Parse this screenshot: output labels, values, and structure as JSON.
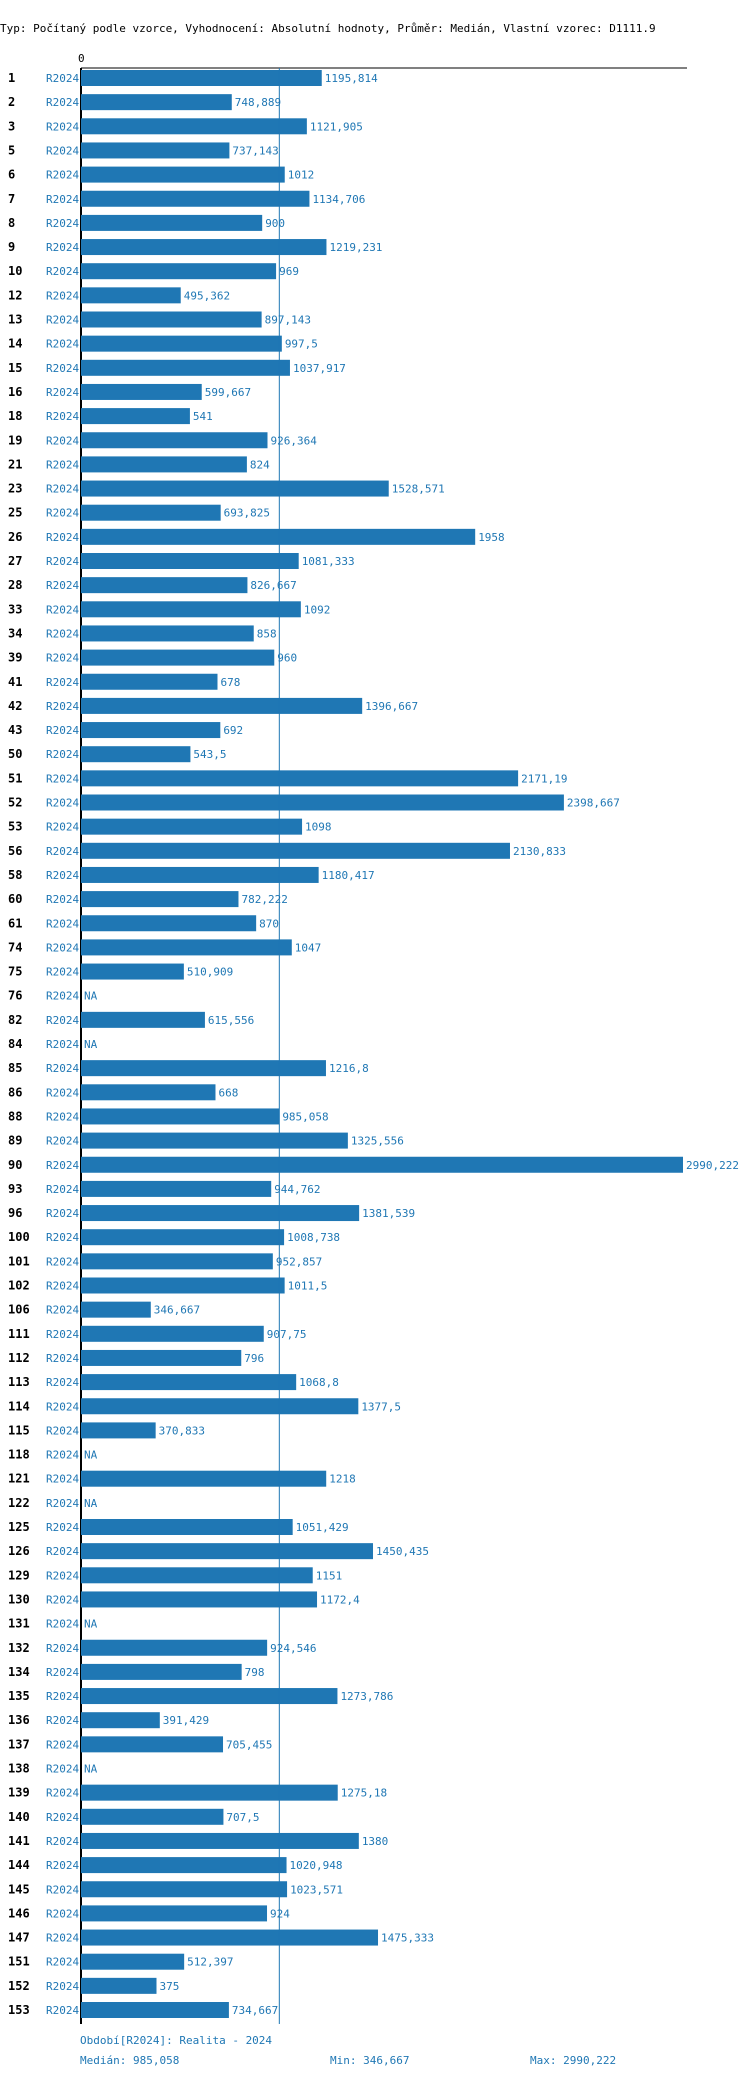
{
  "header": "Typ: Počítaný podle vzorce, Vyhodnocení: Absolutní hodnoty, Průměr: Medián, Vlastní vzorec: D1111.9",
  "footer": {
    "period": "Období[R2024]: Realita - 2024",
    "median": "Medián: 985,058",
    "min": "Min: 346,667",
    "max": "Max: 2990,222"
  },
  "colors": {
    "bar": "#1f77b4",
    "median_line": "#1f77b4",
    "axis": "#000000"
  },
  "chart_data": {
    "type": "bar",
    "orientation": "horizontal",
    "title": "Typ: Počítaný podle vzorce, Vyhodnocení: Absolutní hodnoty, Průměr: Medián, Vlastní vzorec: D1111.9",
    "period": "R2024",
    "axis_tick": "0",
    "xlim": [
      0,
      2990.222
    ],
    "median": 985.058,
    "rows": [
      {
        "id": "1",
        "value": 1195.814,
        "label": "1195,814"
      },
      {
        "id": "2",
        "value": 748.889,
        "label": "748,889"
      },
      {
        "id": "3",
        "value": 1121.905,
        "label": "1121,905"
      },
      {
        "id": "5",
        "value": 737.143,
        "label": "737,143"
      },
      {
        "id": "6",
        "value": 1012,
        "label": "1012"
      },
      {
        "id": "7",
        "value": 1134.706,
        "label": "1134,706"
      },
      {
        "id": "8",
        "value": 900,
        "label": "900"
      },
      {
        "id": "9",
        "value": 1219.231,
        "label": "1219,231"
      },
      {
        "id": "10",
        "value": 969,
        "label": "969"
      },
      {
        "id": "12",
        "value": 495.362,
        "label": "495,362"
      },
      {
        "id": "13",
        "value": 897.143,
        "label": "897,143"
      },
      {
        "id": "14",
        "value": 997.5,
        "label": "997,5"
      },
      {
        "id": "15",
        "value": 1037.917,
        "label": "1037,917"
      },
      {
        "id": "16",
        "value": 599.667,
        "label": "599,667"
      },
      {
        "id": "18",
        "value": 541,
        "label": "541"
      },
      {
        "id": "19",
        "value": 926.364,
        "label": "926,364"
      },
      {
        "id": "21",
        "value": 824,
        "label": "824"
      },
      {
        "id": "23",
        "value": 1528.571,
        "label": "1528,571"
      },
      {
        "id": "25",
        "value": 693.825,
        "label": "693,825"
      },
      {
        "id": "26",
        "value": 1958,
        "label": "1958"
      },
      {
        "id": "27",
        "value": 1081.333,
        "label": "1081,333"
      },
      {
        "id": "28",
        "value": 826.667,
        "label": "826,667"
      },
      {
        "id": "33",
        "value": 1092,
        "label": "1092"
      },
      {
        "id": "34",
        "value": 858,
        "label": "858"
      },
      {
        "id": "39",
        "value": 960,
        "label": "960"
      },
      {
        "id": "41",
        "value": 678,
        "label": "678"
      },
      {
        "id": "42",
        "value": 1396.667,
        "label": "1396,667"
      },
      {
        "id": "43",
        "value": 692,
        "label": "692"
      },
      {
        "id": "50",
        "value": 543.5,
        "label": "543,5"
      },
      {
        "id": "51",
        "value": 2171.19,
        "label": "2171,19"
      },
      {
        "id": "52",
        "value": 2398.667,
        "label": "2398,667"
      },
      {
        "id": "53",
        "value": 1098,
        "label": "1098"
      },
      {
        "id": "56",
        "value": 2130.833,
        "label": "2130,833"
      },
      {
        "id": "58",
        "value": 1180.417,
        "label": "1180,417"
      },
      {
        "id": "60",
        "value": 782.222,
        "label": "782,222"
      },
      {
        "id": "61",
        "value": 870,
        "label": "870"
      },
      {
        "id": "74",
        "value": 1047,
        "label": "1047"
      },
      {
        "id": "75",
        "value": 510.909,
        "label": "510,909"
      },
      {
        "id": "76",
        "value": null,
        "label": "NA"
      },
      {
        "id": "82",
        "value": 615.556,
        "label": "615,556"
      },
      {
        "id": "84",
        "value": null,
        "label": "NA"
      },
      {
        "id": "85",
        "value": 1216.8,
        "label": "1216,8"
      },
      {
        "id": "86",
        "value": 668,
        "label": "668"
      },
      {
        "id": "88",
        "value": 985.058,
        "label": "985,058"
      },
      {
        "id": "89",
        "value": 1325.556,
        "label": "1325,556"
      },
      {
        "id": "90",
        "value": 2990.222,
        "label": "2990,222"
      },
      {
        "id": "93",
        "value": 944.762,
        "label": "944,762"
      },
      {
        "id": "96",
        "value": 1381.539,
        "label": "1381,539"
      },
      {
        "id": "100",
        "value": 1008.738,
        "label": "1008,738"
      },
      {
        "id": "101",
        "value": 952.857,
        "label": "952,857"
      },
      {
        "id": "102",
        "value": 1011.5,
        "label": "1011,5"
      },
      {
        "id": "106",
        "value": 346.667,
        "label": "346,667"
      },
      {
        "id": "111",
        "value": 907.75,
        "label": "907,75"
      },
      {
        "id": "112",
        "value": 796,
        "label": "796"
      },
      {
        "id": "113",
        "value": 1068.8,
        "label": "1068,8"
      },
      {
        "id": "114",
        "value": 1377.5,
        "label": "1377,5"
      },
      {
        "id": "115",
        "value": 370.833,
        "label": "370,833"
      },
      {
        "id": "118",
        "value": null,
        "label": "NA"
      },
      {
        "id": "121",
        "value": 1218,
        "label": "1218"
      },
      {
        "id": "122",
        "value": null,
        "label": "NA"
      },
      {
        "id": "125",
        "value": 1051.429,
        "label": "1051,429"
      },
      {
        "id": "126",
        "value": 1450.435,
        "label": "1450,435"
      },
      {
        "id": "129",
        "value": 1151,
        "label": "1151"
      },
      {
        "id": "130",
        "value": 1172.4,
        "label": "1172,4"
      },
      {
        "id": "131",
        "value": null,
        "label": "NA"
      },
      {
        "id": "132",
        "value": 924.546,
        "label": "924,546"
      },
      {
        "id": "134",
        "value": 798,
        "label": "798"
      },
      {
        "id": "135",
        "value": 1273.786,
        "label": "1273,786"
      },
      {
        "id": "136",
        "value": 391.429,
        "label": "391,429"
      },
      {
        "id": "137",
        "value": 705.455,
        "label": "705,455"
      },
      {
        "id": "138",
        "value": null,
        "label": "NA"
      },
      {
        "id": "139",
        "value": 1275.18,
        "label": "1275,18"
      },
      {
        "id": "140",
        "value": 707.5,
        "label": "707,5"
      },
      {
        "id": "141",
        "value": 1380,
        "label": "1380"
      },
      {
        "id": "144",
        "value": 1020.948,
        "label": "1020,948"
      },
      {
        "id": "145",
        "value": 1023.571,
        "label": "1023,571"
      },
      {
        "id": "146",
        "value": 924,
        "label": "924"
      },
      {
        "id": "147",
        "value": 1475.333,
        "label": "1475,333"
      },
      {
        "id": "151",
        "value": 512.397,
        "label": "512,397"
      },
      {
        "id": "152",
        "value": 375,
        "label": "375"
      },
      {
        "id": "153",
        "value": 734.667,
        "label": "734,667"
      }
    ]
  }
}
